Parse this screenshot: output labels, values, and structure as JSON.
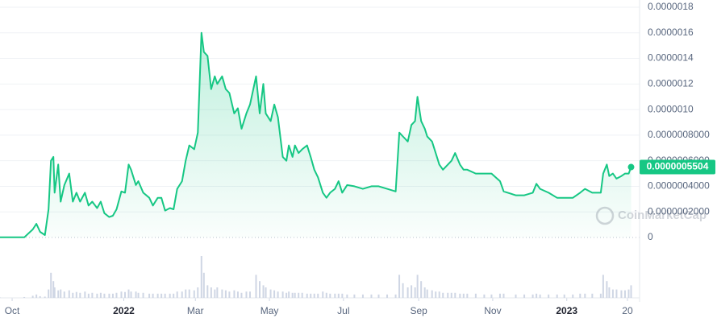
{
  "chart_data": {
    "type": "line",
    "x": [
      -10,
      10,
      17,
      20,
      23,
      27,
      30,
      32,
      34,
      35,
      38,
      40,
      43,
      47,
      50,
      53,
      56,
      60,
      63,
      66,
      70,
      73,
      76,
      80,
      83,
      86,
      90,
      93,
      96,
      98,
      102,
      104,
      108,
      113,
      116,
      120,
      123,
      126,
      130,
      133,
      136,
      140,
      143,
      146,
      150,
      153,
      156,
      158,
      161,
      164,
      167,
      169,
      173,
      176,
      179,
      183,
      186,
      189,
      193,
      196,
      201,
      204,
      207,
      209,
      213,
      216,
      219,
      223,
      226,
      228,
      231,
      233,
      236,
      239,
      243,
      246,
      249,
      252,
      256,
      259,
      262,
      266,
      269,
      272,
      276,
      282,
      289,
      296,
      302,
      309,
      316,
      319,
      322,
      326,
      329,
      332,
      334,
      337,
      340,
      342,
      346,
      349,
      352,
      355,
      359,
      362,
      365,
      369,
      372,
      375,
      382,
      389,
      395,
      402,
      405,
      415,
      422,
      429,
      432,
      435,
      442,
      449,
      455,
      462,
      468,
      472,
      478,
      485,
      487,
      490,
      492,
      495,
      498,
      502,
      505,
      508,
      510
    ],
    "series": [
      {
        "color": "#16c784",
        "values": [
          1e-09,
          1e-09,
          6.3e-08,
          1.07e-07,
          4.4e-08,
          1.9e-08,
          2.2e-07,
          6e-07,
          6.3e-07,
          3.5e-07,
          5.7e-07,
          2.8e-07,
          4.1e-07,
          5e-07,
          2.8e-07,
          3.5e-07,
          2.8e-07,
          3.5e-07,
          2.5e-07,
          2.8e-07,
          2.3e-07,
          2.8e-07,
          1.9e-07,
          1.6e-07,
          1.7e-07,
          2.2e-07,
          3.6e-07,
          3.5e-07,
          5.7e-07,
          5.3e-07,
          4.1e-07,
          4.4e-07,
          3.5e-07,
          3.1e-07,
          2.5e-07,
          3.1e-07,
          3.1e-07,
          2.1e-07,
          2.3e-07,
          2.2e-07,
          3.8e-07,
          4.4e-07,
          6e-07,
          7.2e-07,
          6.9e-07,
          8.2e-07,
          1.6e-06,
          1.45e-06,
          1.42e-06,
          1.16e-06,
          1.26e-06,
          1.2e-06,
          1.26e-06,
          1.16e-06,
          1.13e-06,
          9.7e-07,
          1.01e-06,
          8.5e-07,
          9.7e-07,
          1.04e-06,
          1.26e-06,
          9.7e-07,
          1.2e-06,
          9.7e-07,
          9.1e-07,
          1.04e-06,
          9.4e-07,
          6.3e-07,
          6e-07,
          7.2e-07,
          6.3e-07,
          7.2e-07,
          6.6e-07,
          6.9e-07,
          7.2e-07,
          6.3e-07,
          5.3e-07,
          4.7e-07,
          3.5e-07,
          3.1e-07,
          3.5e-07,
          3.8e-07,
          4.4e-07,
          3.5e-07,
          4.1e-07,
          4e-07,
          3.8e-07,
          4e-07,
          4e-07,
          3.8e-07,
          3.6e-07,
          8.2e-07,
          7.9e-07,
          7.5e-07,
          8.8e-07,
          9.1e-07,
          1.1e-06,
          9.1e-07,
          8.5e-07,
          7.9e-07,
          7.5e-07,
          6.6e-07,
          5.7e-07,
          5.3e-07,
          5.7e-07,
          6e-07,
          6.6e-07,
          5.7e-07,
          5.3e-07,
          5.3e-07,
          5e-07,
          5e-07,
          5e-07,
          4.4e-07,
          3.6e-07,
          3.3e-07,
          3.3e-07,
          3.5e-07,
          4.2e-07,
          3.8e-07,
          3.5e-07,
          3.1e-07,
          3.1e-07,
          3.1e-07,
          3.5e-07,
          3.8e-07,
          3.5e-07,
          3.5e-07,
          5e-07,
          5.7e-07,
          4.8e-07,
          5e-07,
          4.6e-07,
          4.8e-07,
          5e-07,
          5e-07,
          5.504e-07
        ]
      }
    ],
    "volume": {
      "color": "#cfd6e4",
      "ylim": [
        0,
        100
      ],
      "values": [
        1,
        2,
        5,
        8,
        4,
        3,
        20,
        60,
        40,
        25,
        18,
        20,
        15,
        18,
        12,
        14,
        12,
        15,
        10,
        12,
        10,
        12,
        10,
        10,
        10,
        12,
        15,
        14,
        20,
        15,
        15,
        12,
        12,
        10,
        10,
        10,
        10,
        10,
        10,
        10,
        15,
        15,
        20,
        20,
        18,
        25,
        100,
        60,
        30,
        25,
        20,
        25,
        20,
        18,
        15,
        18,
        15,
        12,
        15,
        15,
        55,
        40,
        30,
        25,
        20,
        18,
        15,
        15,
        12,
        15,
        12,
        12,
        12,
        12,
        10,
        10,
        10,
        10,
        15,
        12,
        10,
        10,
        10,
        10,
        8,
        8,
        8,
        8,
        8,
        8,
        8,
        55,
        35,
        25,
        30,
        25,
        55,
        40,
        25,
        20,
        18,
        15,
        15,
        12,
        12,
        12,
        12,
        10,
        10,
        10,
        10,
        8,
        8,
        10,
        10,
        8,
        8,
        8,
        10,
        8,
        8,
        8,
        8,
        8,
        10,
        10,
        10,
        10,
        55,
        40,
        25,
        20,
        20,
        18,
        18,
        20,
        30
      ]
    },
    "current_price": {
      "value": 5.504e-07,
      "label": "0.0000005504"
    },
    "xlim": [
      -10,
      513
    ],
    "xticks": [
      {
        "value": 0,
        "label": "Oct"
      },
      {
        "value": 92,
        "label": "2022"
      },
      {
        "value": 151,
        "label": "Mar"
      },
      {
        "value": 212,
        "label": "May"
      },
      {
        "value": 273,
        "label": "Jul"
      },
      {
        "value": 335,
        "label": "Sep"
      },
      {
        "value": 396,
        "label": "Nov"
      },
      {
        "value": 457,
        "label": "2023"
      },
      {
        "value": 507,
        "label": "20"
      }
    ],
    "ylim": [
      0,
      1.8e-06
    ],
    "yticks": [
      0,
      {
        "value": 2e-07,
        "label": "0.0000002000"
      },
      {
        "value": 4e-07,
        "label": "0.0000004000"
      },
      {
        "value": 6e-07,
        "label": "0.0000006000"
      },
      {
        "value": 8e-07,
        "label": "0.0000008000"
      },
      {
        "value": 1e-06,
        "label": "0.0000010"
      },
      {
        "value": 1.2e-06,
        "label": "0.0000012"
      },
      {
        "value": 1.4e-06,
        "label": "0.0000014"
      },
      {
        "value": 1.6e-06,
        "label": "0.0000016"
      },
      {
        "value": 1.8e-06,
        "label": "0.0000018"
      }
    ],
    "grid": true,
    "watermark": "CoinMarketCap"
  }
}
